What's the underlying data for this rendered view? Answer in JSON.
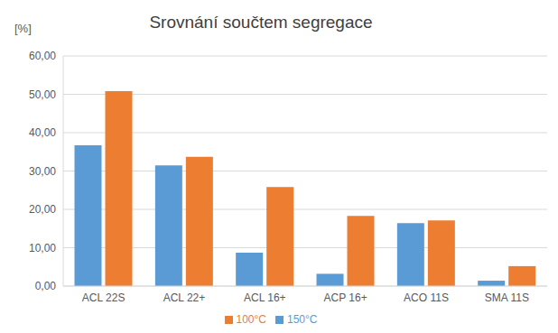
{
  "chart_data": {
    "type": "bar",
    "title": "Srovnání součtem segregace",
    "y_label": "[%]",
    "categories": [
      "ACL 22S",
      "ACL 22+",
      "ACL 16+",
      "ACP 16+",
      "ACO 11S",
      "SMA 11S"
    ],
    "series": [
      {
        "name": "150°C",
        "color": "#5b9bd5",
        "values": [
          36.7,
          31.5,
          8.7,
          3.2,
          16.4,
          1.4
        ]
      },
      {
        "name": "100°C",
        "color": "#ed7d31",
        "values": [
          50.8,
          33.7,
          25.8,
          18.3,
          17.1,
          5.2
        ]
      }
    ],
    "ylim": [
      0,
      60
    ],
    "yticks": [
      {
        "value": 0,
        "label": "0,00"
      },
      {
        "value": 10,
        "label": "10,00"
      },
      {
        "value": 20,
        "label": "20,00"
      },
      {
        "value": 30,
        "label": "30,00"
      },
      {
        "value": 40,
        "label": "40,00"
      },
      {
        "value": 50,
        "label": "50,00"
      },
      {
        "value": 60,
        "label": "60,00"
      }
    ],
    "grid": true,
    "legend": "bottom",
    "data_labels": false
  }
}
